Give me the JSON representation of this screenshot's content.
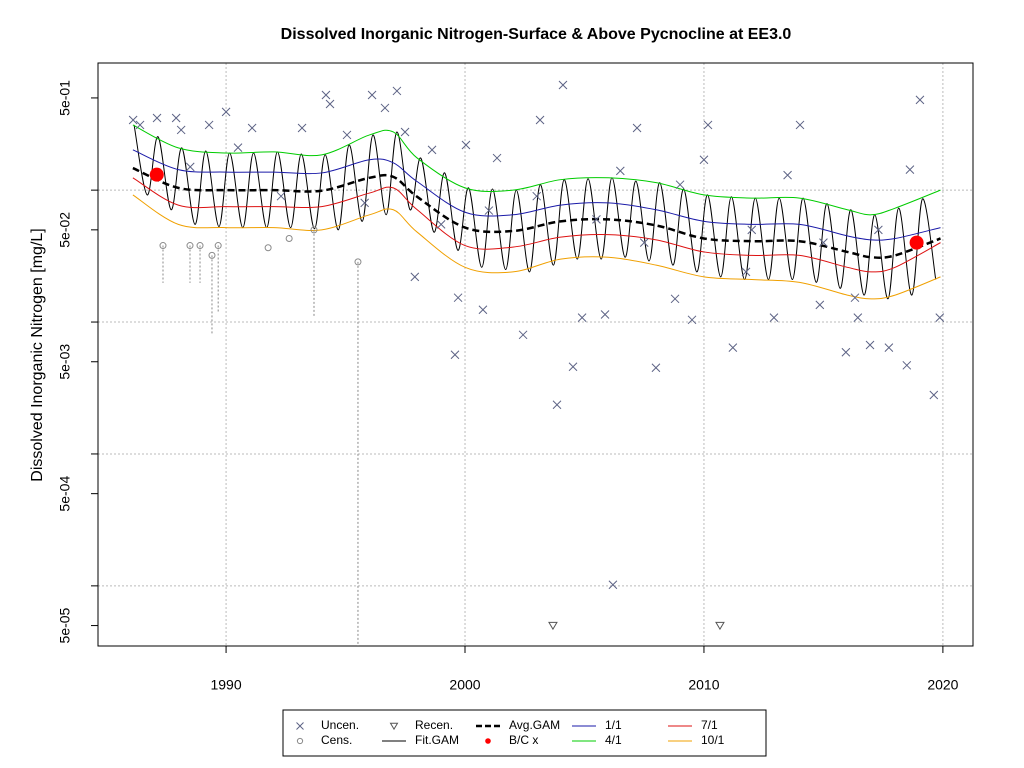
{
  "chart_data": {
    "type": "scatter",
    "title": "Dissolved Inorganic Nitrogen-Surface & Above Pycnocline at EE3.0",
    "y_label": "Dissolved Inorganic Nitrogen [mg/L]",
    "log_y": true,
    "grid": true,
    "legend": "bottom",
    "xlim": [
      1984.64,
      2021.26
    ],
    "ylim": [
      3.5e-05,
      0.92
    ],
    "xticks": [
      1990,
      2000,
      2010,
      2020
    ],
    "yticks": [
      {
        "value": 0.5,
        "label": "5e-01"
      },
      {
        "value": 0.05,
        "label": "5e-02"
      },
      {
        "value": 0.005,
        "label": "5e-03"
      },
      {
        "value": 0.0005,
        "label": "5e-04"
      },
      {
        "value": 5e-05,
        "label": "5e-05"
      }
    ],
    "ygrid": [
      0.1,
      0.01,
      0.001,
      0.0001
    ],
    "series": [
      {
        "name": "Uncen.",
        "marker": "x",
        "color": "#5d6385",
        "x": [
          1986.11,
          1986.4,
          1987.11,
          1987.91,
          1988.12,
          1989.29,
          1990.0,
          1991.09,
          1993.18,
          1994.18,
          1994.35,
          1995.06,
          1996.11,
          1996.65,
          1997.15,
          1997.49,
          1998.62,
          1999.0,
          1999.71,
          1999.58,
          2000.04,
          2000.75,
          2001.34,
          2002.43,
          2003.14,
          2003.85,
          2004.1,
          2004.52,
          2004.9,
          2005.86,
          2006.19,
          2007.2,
          2007.99,
          2008.79,
          2009.5,
          2010.0,
          2010.17,
          2011.21,
          2011.76,
          2012.93,
          2014.02,
          2014.85,
          2015.94,
          2016.44,
          2016.95,
          2017.74,
          2018.49,
          2019.04,
          2019.62,
          2019.87,
          2016.32,
          2018.62,
          1988.5,
          1992.3,
          1995.8,
          2001.0,
          2003.0,
          2005.5,
          2007.5,
          2009.0,
          2012.0,
          2013.5,
          2015.0,
          2017.3,
          1997.9,
          1990.5,
          2006.5
        ],
        "values": [
          0.34,
          0.312,
          0.352,
          0.352,
          0.286,
          0.312,
          0.392,
          0.296,
          0.296,
          0.526,
          0.45,
          0.262,
          0.526,
          0.42,
          0.565,
          0.276,
          0.202,
          0.055,
          0.0153,
          0.00565,
          0.22,
          0.0124,
          0.175,
          0.008,
          0.34,
          0.00236,
          0.627,
          0.00458,
          0.0108,
          0.0114,
          0.000102,
          0.296,
          0.0045,
          0.015,
          0.0104,
          0.17,
          0.312,
          0.0064,
          0.024,
          0.0108,
          0.312,
          0.0135,
          0.0059,
          0.0108,
          0.0067,
          0.0064,
          0.0047,
          0.483,
          0.0028,
          0.0108,
          0.0153,
          0.143,
          0.15,
          0.09,
          0.08,
          0.07,
          0.09,
          0.06,
          0.04,
          0.11,
          0.05,
          0.13,
          0.04,
          0.05,
          0.022,
          0.21,
          0.14
        ]
      },
      {
        "name": "Cens.",
        "marker": "circle",
        "color": "#8a8a8a",
        "x": [
          1987.36,
          1988.49,
          1988.91,
          1989.41,
          1989.67,
          1991.76,
          1992.64,
          1993.68,
          1995.52
        ],
        "values": [
          0.038,
          0.038,
          0.038,
          0.032,
          0.038,
          0.0366,
          0.043,
          0.05,
          0.0286
        ],
        "low": [
          0.0198,
          0.0198,
          0.0198,
          0.008,
          0.012,
          0.0366,
          0.043,
          0.0111,
          3.5e-05
        ]
      },
      {
        "name": "Recen.",
        "marker": "triangle",
        "color": "#555555",
        "x": [
          2003.68,
          2010.67
        ],
        "values": [
          5e-05,
          5e-05
        ]
      },
      {
        "name": "Fit.GAM",
        "line": "solid",
        "color": "#000000",
        "x": [
          1986.15,
          1986.7,
          1987.15,
          1987.7,
          1988.15,
          1988.7,
          1989.15,
          1989.7,
          1990.15,
          1990.7,
          1991.15,
          1991.7,
          1992.15,
          1992.7,
          1993.15,
          1993.7,
          1994.15,
          1994.7,
          1995.15,
          1995.7,
          1996.15,
          1996.7,
          1997.15,
          1997.7,
          1998.15,
          1998.7,
          1999.15,
          1999.7,
          2000.15,
          2000.7,
          2001.15,
          2001.7,
          2002.15,
          2002.7,
          2003.15,
          2003.7,
          2004.15,
          2004.7,
          2005.15,
          2005.7,
          2006.15,
          2006.7,
          2007.15,
          2007.7,
          2008.15,
          2008.7,
          2009.15,
          2009.7,
          2010.15,
          2010.7,
          2011.15,
          2011.7,
          2012.15,
          2012.7,
          2013.15,
          2013.7,
          2014.15,
          2014.7,
          2015.15,
          2015.7,
          2016.15,
          2016.7,
          2017.15,
          2017.7,
          2018.15,
          2018.7,
          2019.15,
          2019.7
        ],
        "values": [
          0.312,
          0.092,
          0.254,
          0.071,
          0.209,
          0.055,
          0.198,
          0.053,
          0.191,
          0.052,
          0.191,
          0.052,
          0.195,
          0.052,
          0.188,
          0.051,
          0.185,
          0.05,
          0.22,
          0.058,
          0.262,
          0.065,
          0.276,
          0.071,
          0.175,
          0.048,
          0.135,
          0.035,
          0.104,
          0.026,
          0.102,
          0.025,
          0.1,
          0.024,
          0.11,
          0.027,
          0.12,
          0.03,
          0.122,
          0.03,
          0.124,
          0.031,
          0.117,
          0.029,
          0.114,
          0.027,
          0.102,
          0.024,
          0.092,
          0.022,
          0.089,
          0.021,
          0.087,
          0.021,
          0.087,
          0.021,
          0.087,
          0.02,
          0.079,
          0.018,
          0.071,
          0.016,
          0.065,
          0.015,
          0.073,
          0.016,
          0.086,
          0.021
        ]
      },
      {
        "name": "Avg.GAM",
        "line": "dashed",
        "color": "#000000",
        "x": [
          1986.1,
          1988,
          1990,
          1992,
          1994,
          1996,
          1997,
          1998,
          2000,
          2002,
          2004,
          2006,
          2008,
          2010,
          2012,
          2014,
          2016,
          2017,
          2018,
          2019.9
        ],
        "values": [
          0.147,
          0.104,
          0.1,
          0.1,
          0.099,
          0.124,
          0.126,
          0.089,
          0.052,
          0.049,
          0.058,
          0.06,
          0.054,
          0.043,
          0.041,
          0.041,
          0.034,
          0.031,
          0.032,
          0.043
        ]
      },
      {
        "name": "B/C x",
        "marker": "dot",
        "color": "#ff0000",
        "x": [
          1987.1,
          2018.9
        ],
        "values": [
          0.131,
          0.04
        ]
      },
      {
        "name": "1/1",
        "line": "solid",
        "color": "#1a1aa8",
        "x": [
          1986.1,
          1988,
          1990,
          1992,
          1994,
          1996,
          1997,
          1998,
          2000,
          2002,
          2004,
          2006,
          2008,
          2010,
          2012,
          2014,
          2016,
          2017,
          2018,
          2019.9
        ],
        "values": [
          0.202,
          0.143,
          0.137,
          0.137,
          0.135,
          0.17,
          0.161,
          0.116,
          0.068,
          0.065,
          0.077,
          0.08,
          0.071,
          0.058,
          0.055,
          0.055,
          0.045,
          0.042,
          0.043,
          0.052
        ]
      },
      {
        "name": "4/1",
        "line": "solid",
        "color": "#00cc00",
        "x": [
          1986.1,
          1988,
          1990,
          1992,
          1994,
          1996,
          1997,
          1998,
          2000,
          2002,
          2004,
          2006,
          2008,
          2010,
          2012,
          2014,
          2016,
          2017,
          2018,
          2019.9
        ],
        "values": [
          0.312,
          0.209,
          0.191,
          0.195,
          0.185,
          0.262,
          0.276,
          0.175,
          0.104,
          0.1,
          0.12,
          0.124,
          0.114,
          0.092,
          0.087,
          0.087,
          0.071,
          0.065,
          0.073,
          0.1
        ]
      },
      {
        "name": "7/1",
        "line": "solid",
        "color": "#dd1111",
        "x": [
          1986.1,
          1988,
          1990,
          1992,
          1994,
          1996,
          1997,
          1998,
          2000,
          2002,
          2004,
          2006,
          2008,
          2010,
          2012,
          2014,
          2016,
          2017,
          2018,
          2019.9
        ],
        "values": [
          0.124,
          0.077,
          0.075,
          0.075,
          0.075,
          0.095,
          0.104,
          0.071,
          0.038,
          0.037,
          0.044,
          0.046,
          0.042,
          0.034,
          0.032,
          0.032,
          0.026,
          0.024,
          0.026,
          0.04
        ]
      },
      {
        "name": "10/1",
        "line": "solid",
        "color": "#f0a000",
        "x": [
          1986.1,
          1988,
          1990,
          1992,
          1994,
          1996,
          1997,
          1998,
          2000,
          2002,
          2004,
          2006,
          2008,
          2010,
          2012,
          2014,
          2016,
          2017,
          2018,
          2019.9
        ],
        "values": [
          0.092,
          0.055,
          0.052,
          0.052,
          0.05,
          0.065,
          0.071,
          0.048,
          0.026,
          0.024,
          0.03,
          0.031,
          0.027,
          0.022,
          0.021,
          0.02,
          0.016,
          0.015,
          0.016,
          0.022
        ]
      }
    ]
  }
}
